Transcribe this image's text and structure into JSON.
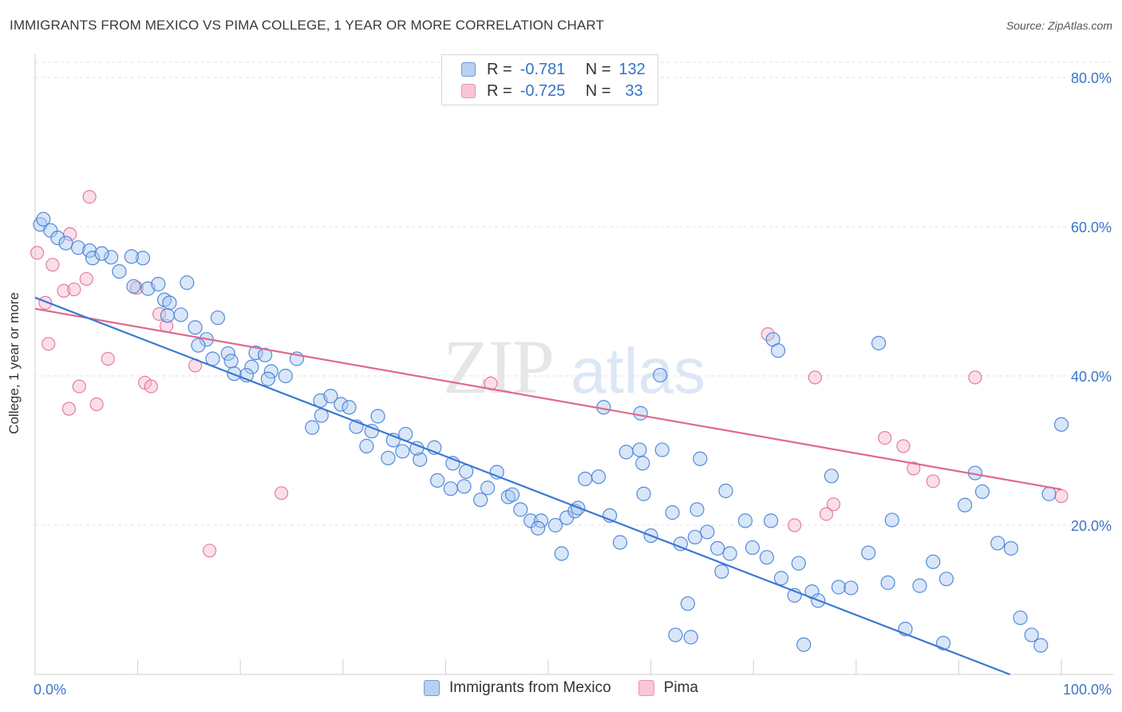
{
  "title": "IMMIGRANTS FROM MEXICO VS PIMA COLLEGE, 1 YEAR OR MORE CORRELATION CHART",
  "source": "Source: ZipAtlas.com",
  "watermark": {
    "zip": "ZIP",
    "atlas": "atlas"
  },
  "colors": {
    "blue": "#3a78d4",
    "blue_fill": "#a9c8ef",
    "pink": "#e0698f",
    "pink_fill": "#f5b9cb",
    "tick_text": "#3a75c8"
  },
  "stats_legend": [
    {
      "r_label": "R =",
      "r_value": "-0.781",
      "n_label": "N =",
      "n_value": "132",
      "color": "blue"
    },
    {
      "r_label": "R =",
      "r_value": "-0.725",
      "n_label": "N =",
      "n_value": "33",
      "color": "pink"
    }
  ],
  "legend": [
    {
      "label": "Immigrants from Mexico",
      "color": "blue"
    },
    {
      "label": "Pima",
      "color": "pink"
    }
  ],
  "chart_data": {
    "type": "scatter",
    "xlabel": "",
    "ylabel": "College, 1 year or more",
    "xlim": [
      0,
      100
    ],
    "ylim": [
      0,
      80
    ],
    "x_tick_labels": [
      "0.0%",
      "100.0%"
    ],
    "y_tick_labels": [
      "20.0%",
      "40.0%",
      "60.0%",
      "80.0%"
    ],
    "y_ticks": [
      20,
      40,
      60,
      80
    ],
    "grid": true,
    "legend_position": "bottom",
    "series": [
      {
        "name": "Immigrants from Mexico",
        "color": "blue",
        "trend": [
          [
            0,
            50.5
          ],
          [
            95,
            0
          ]
        ],
        "points": [
          [
            0.5,
            60.3
          ],
          [
            0.8,
            61.0
          ],
          [
            1.5,
            59.5
          ],
          [
            2.2,
            58.5
          ],
          [
            3.0,
            57.8
          ],
          [
            4.2,
            57.2
          ],
          [
            5.3,
            56.8
          ],
          [
            5.6,
            55.8
          ],
          [
            7.4,
            55.9
          ],
          [
            6.5,
            56.4
          ],
          [
            8.2,
            54.0
          ],
          [
            10.5,
            55.8
          ],
          [
            9.6,
            52.0
          ],
          [
            11.0,
            51.7
          ],
          [
            12.6,
            50.2
          ],
          [
            9.4,
            56.0
          ],
          [
            12.0,
            52.3
          ],
          [
            14.8,
            52.5
          ],
          [
            13.1,
            49.8
          ],
          [
            14.2,
            48.2
          ],
          [
            15.6,
            46.5
          ],
          [
            17.8,
            47.8
          ],
          [
            12.9,
            48.1
          ],
          [
            16.7,
            44.9
          ],
          [
            15.9,
            44.1
          ],
          [
            18.8,
            43.0
          ],
          [
            17.3,
            42.3
          ],
          [
            21.1,
            41.2
          ],
          [
            19.1,
            42.0
          ],
          [
            21.5,
            43.1
          ],
          [
            22.4,
            42.8
          ],
          [
            20.6,
            40.1
          ],
          [
            23.0,
            40.6
          ],
          [
            25.5,
            42.3
          ],
          [
            19.4,
            40.3
          ],
          [
            24.4,
            40.0
          ],
          [
            22.7,
            39.6
          ],
          [
            27.8,
            36.7
          ],
          [
            28.8,
            37.3
          ],
          [
            27.9,
            34.7
          ],
          [
            29.8,
            36.2
          ],
          [
            27.0,
            33.1
          ],
          [
            30.6,
            35.8
          ],
          [
            31.3,
            33.2
          ],
          [
            32.8,
            32.6
          ],
          [
            33.4,
            34.6
          ],
          [
            34.9,
            31.4
          ],
          [
            32.3,
            30.6
          ],
          [
            34.4,
            29.0
          ],
          [
            36.1,
            32.2
          ],
          [
            35.8,
            29.9
          ],
          [
            37.5,
            28.8
          ],
          [
            37.2,
            30.3
          ],
          [
            38.9,
            30.4
          ],
          [
            39.2,
            26.0
          ],
          [
            40.7,
            28.3
          ],
          [
            42.0,
            27.2
          ],
          [
            40.5,
            24.9
          ],
          [
            41.8,
            25.2
          ],
          [
            44.1,
            25.0
          ],
          [
            43.4,
            23.4
          ],
          [
            45.0,
            27.1
          ],
          [
            46.1,
            23.8
          ],
          [
            46.5,
            24.1
          ],
          [
            47.3,
            22.1
          ],
          [
            48.3,
            20.6
          ],
          [
            49.3,
            20.6
          ],
          [
            49.0,
            19.6
          ],
          [
            50.7,
            20.0
          ],
          [
            51.8,
            21.0
          ],
          [
            51.3,
            16.2
          ],
          [
            52.6,
            21.9
          ],
          [
            52.9,
            22.3
          ],
          [
            53.6,
            26.2
          ],
          [
            54.9,
            26.5
          ],
          [
            55.4,
            35.8
          ],
          [
            56.0,
            21.3
          ],
          [
            57.0,
            17.7
          ],
          [
            57.6,
            29.8
          ],
          [
            58.9,
            30.1
          ],
          [
            59.0,
            35.0
          ],
          [
            59.3,
            24.2
          ],
          [
            60.0,
            18.6
          ],
          [
            61.1,
            30.1
          ],
          [
            62.1,
            21.7
          ],
          [
            60.9,
            40.1
          ],
          [
            62.9,
            17.5
          ],
          [
            63.6,
            9.5
          ],
          [
            64.3,
            18.4
          ],
          [
            64.5,
            22.1
          ],
          [
            64.8,
            28.9
          ],
          [
            65.5,
            19.1
          ],
          [
            66.5,
            16.9
          ],
          [
            66.9,
            13.8
          ],
          [
            67.7,
            16.2
          ],
          [
            67.3,
            24.6
          ],
          [
            69.2,
            20.6
          ],
          [
            69.9,
            17.0
          ],
          [
            71.3,
            15.7
          ],
          [
            71.7,
            20.6
          ],
          [
            72.7,
            12.9
          ],
          [
            74.0,
            10.6
          ],
          [
            74.4,
            14.9
          ],
          [
            75.7,
            11.1
          ],
          [
            76.3,
            9.9
          ],
          [
            77.6,
            26.6
          ],
          [
            78.3,
            11.7
          ],
          [
            79.5,
            11.6
          ],
          [
            81.2,
            16.3
          ],
          [
            83.1,
            12.3
          ],
          [
            84.8,
            6.1
          ],
          [
            86.2,
            11.9
          ],
          [
            87.5,
            15.1
          ],
          [
            88.8,
            12.8
          ],
          [
            88.5,
            4.2
          ],
          [
            90.6,
            22.7
          ],
          [
            91.6,
            27.0
          ],
          [
            92.3,
            24.5
          ],
          [
            93.8,
            17.6
          ],
          [
            95.1,
            16.9
          ],
          [
            96.0,
            7.6
          ],
          [
            97.1,
            5.3
          ],
          [
            98.0,
            3.9
          ],
          [
            98.8,
            24.2
          ],
          [
            100.0,
            33.5
          ],
          [
            59.2,
            28.3
          ],
          [
            62.4,
            5.3
          ],
          [
            71.9,
            44.9
          ],
          [
            82.2,
            44.4
          ],
          [
            63.9,
            5.0
          ],
          [
            72.4,
            43.4
          ],
          [
            83.5,
            20.7
          ],
          [
            74.9,
            4.0
          ]
        ]
      },
      {
        "name": "Pima",
        "color": "pink",
        "trend": [
          [
            0,
            49
          ],
          [
            100,
            24.8
          ]
        ],
        "points": [
          [
            0.2,
            56.5
          ],
          [
            1.0,
            49.8
          ],
          [
            1.3,
            44.3
          ],
          [
            1.7,
            54.9
          ],
          [
            3.4,
            59.0
          ],
          [
            2.8,
            51.4
          ],
          [
            3.8,
            51.6
          ],
          [
            3.3,
            35.6
          ],
          [
            4.3,
            38.6
          ],
          [
            5.0,
            53.0
          ],
          [
            5.3,
            64.0
          ],
          [
            6.0,
            36.2
          ],
          [
            7.1,
            42.3
          ],
          [
            9.9,
            51.8
          ],
          [
            10.7,
            39.1
          ],
          [
            11.3,
            38.6
          ],
          [
            12.1,
            48.3
          ],
          [
            12.8,
            46.7
          ],
          [
            15.6,
            41.4
          ],
          [
            17.0,
            16.6
          ],
          [
            24.0,
            24.3
          ],
          [
            44.4,
            39.0
          ],
          [
            71.4,
            45.6
          ],
          [
            74.0,
            20.0
          ],
          [
            76.0,
            39.8
          ],
          [
            77.1,
            21.5
          ],
          [
            77.8,
            22.8
          ],
          [
            82.8,
            31.7
          ],
          [
            84.6,
            30.6
          ],
          [
            85.6,
            27.6
          ],
          [
            87.5,
            25.9
          ],
          [
            91.6,
            39.8
          ],
          [
            100.0,
            23.9
          ]
        ]
      }
    ]
  }
}
